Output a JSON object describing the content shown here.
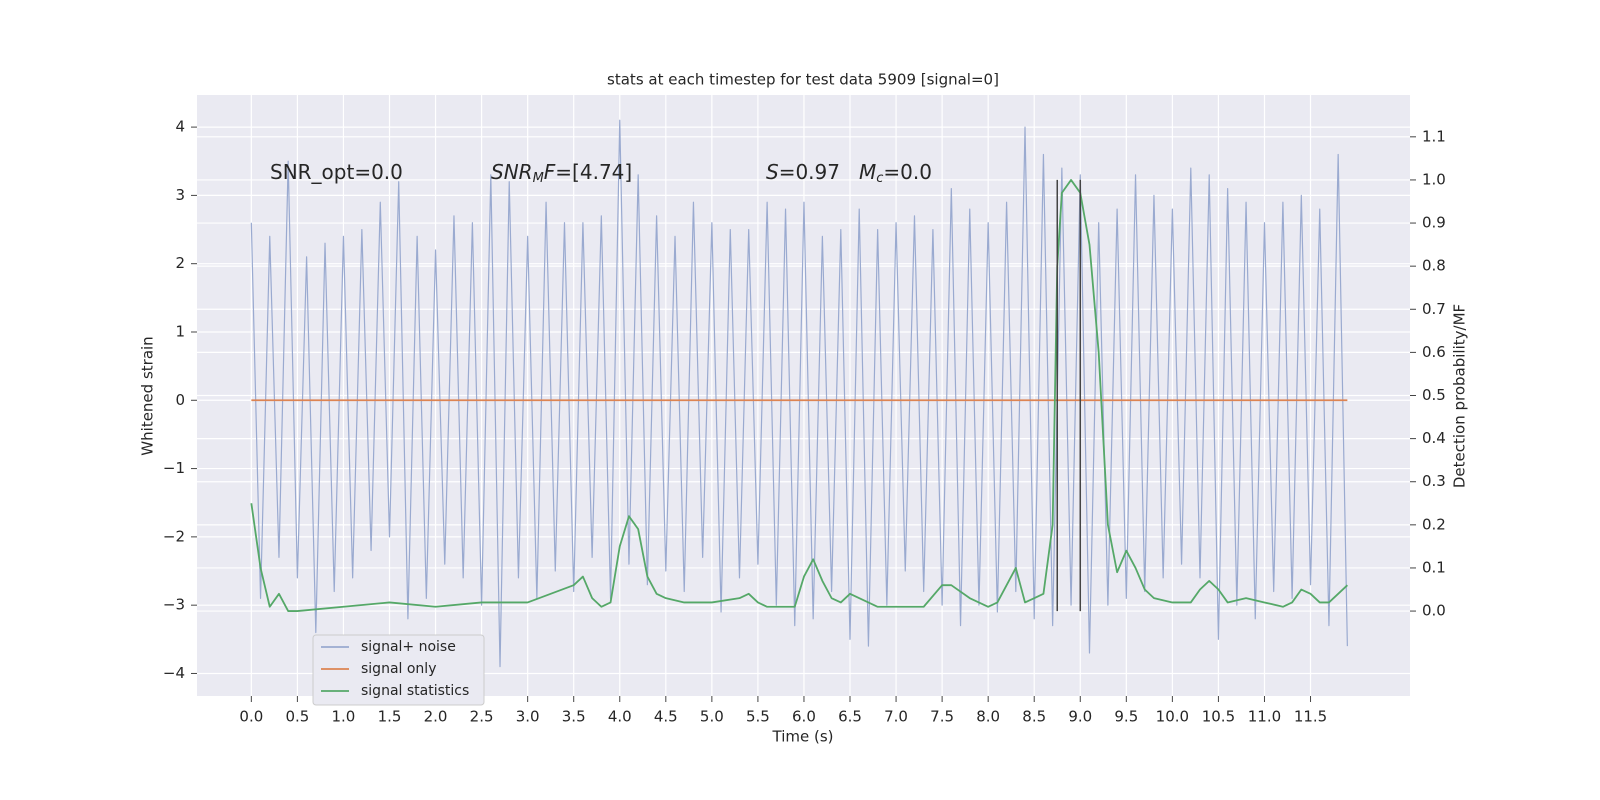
{
  "chart_data": {
    "type": "line",
    "title": "stats at each timestep for test data 5909 [signal=0]",
    "x_label": "Time (s)",
    "y_label": "Whitened strain",
    "y2_label": "Detection probability/MF",
    "xlim": [
      -0.59,
      12.58
    ],
    "ylim": [
      -4.33,
      4.47
    ],
    "y2lim": [
      -0.197,
      1.197
    ],
    "xticks": [
      {
        "value": 0,
        "label": "0.0"
      },
      {
        "value": 0.5,
        "label": "0.5"
      },
      {
        "value": 1,
        "label": "1.0"
      },
      {
        "value": 1.5,
        "label": "1.5"
      },
      {
        "value": 2,
        "label": "2.0"
      },
      {
        "value": 2.5,
        "label": "2.5"
      },
      {
        "value": 3,
        "label": "3.0"
      },
      {
        "value": 3.5,
        "label": "3.5"
      },
      {
        "value": 4,
        "label": "4.0"
      },
      {
        "value": 4.5,
        "label": "4.5"
      },
      {
        "value": 5,
        "label": "5.0"
      },
      {
        "value": 5.5,
        "label": "5.5"
      },
      {
        "value": 6,
        "label": "6.0"
      },
      {
        "value": 6.5,
        "label": "6.5"
      },
      {
        "value": 7,
        "label": "7.0"
      },
      {
        "value": 7.5,
        "label": "7.5"
      },
      {
        "value": 8,
        "label": "8.0"
      },
      {
        "value": 8.5,
        "label": "8.5"
      },
      {
        "value": 9,
        "label": "9.0"
      },
      {
        "value": 9.5,
        "label": "9.5"
      },
      {
        "value": 10,
        "label": "10.0"
      },
      {
        "value": 10.5,
        "label": "10.5"
      },
      {
        "value": 11,
        "label": "11.0"
      },
      {
        "value": 11.5,
        "label": "11.5"
      }
    ],
    "yticks": [
      {
        "value": -4,
        "label": "−4"
      },
      {
        "value": -3,
        "label": "−3"
      },
      {
        "value": -2,
        "label": "−2"
      },
      {
        "value": -1,
        "label": "−1"
      },
      0,
      1,
      2,
      3,
      4
    ],
    "y2ticks": [
      {
        "value": 0,
        "label": "0.0"
      },
      {
        "value": 0.1,
        "label": "0.1"
      },
      {
        "value": 0.2,
        "label": "0.2"
      },
      {
        "value": 0.3,
        "label": "0.3"
      },
      {
        "value": 0.4,
        "label": "0.4"
      },
      {
        "value": 0.5,
        "label": "0.5"
      },
      {
        "value": 0.6,
        "label": "0.6"
      },
      {
        "value": 0.7,
        "label": "0.7"
      },
      {
        "value": 0.8,
        "label": "0.8"
      },
      {
        "value": 0.9,
        "label": "0.9"
      },
      {
        "value": 1,
        "label": "1.0"
      },
      {
        "value": 1.1,
        "label": "1.1"
      }
    ],
    "grid": true,
    "legend": "lower left",
    "series": [
      {
        "name": "signal+ noise",
        "color": "#9aaad0",
        "x": [
          0,
          0.1,
          0.2,
          0.3,
          0.4,
          0.5,
          0.6,
          0.7,
          0.8,
          0.9,
          1,
          1.1,
          1.2,
          1.3,
          1.4,
          1.5,
          1.6,
          1.7,
          1.8,
          1.9,
          2,
          2.1,
          2.2,
          2.3,
          2.4,
          2.5,
          2.6,
          2.7,
          2.8,
          2.9,
          3,
          3.1,
          3.2,
          3.3,
          3.4,
          3.5,
          3.6,
          3.7,
          3.8,
          3.9,
          4,
          4.1,
          4.2,
          4.3,
          4.4,
          4.5,
          4.6,
          4.7,
          4.8,
          4.9,
          5,
          5.1,
          5.2,
          5.3,
          5.4,
          5.5,
          5.6,
          5.7,
          5.8,
          5.9,
          6,
          6.1,
          6.2,
          6.3,
          6.4,
          6.5,
          6.6,
          6.7,
          6.8,
          6.9,
          7,
          7.1,
          7.2,
          7.3,
          7.4,
          7.5,
          7.6,
          7.7,
          7.8,
          7.9,
          8,
          8.1,
          8.2,
          8.3,
          8.4,
          8.5,
          8.6,
          8.7,
          8.8,
          8.9,
          9,
          9.1,
          9.2,
          9.3,
          9.4,
          9.5,
          9.6,
          9.7,
          9.8,
          9.9,
          10,
          10.1,
          10.2,
          10.3,
          10.4,
          10.5,
          10.6,
          10.7,
          10.8,
          10.9,
          11,
          11.1,
          11.2,
          11.3,
          11.4,
          11.5,
          11.6,
          11.7,
          11.8,
          11.9
        ],
        "values": [
          2.6,
          -2.9,
          2.4,
          -2.3,
          3.5,
          -2.6,
          2.1,
          -3.4,
          2.3,
          -2.8,
          2.4,
          -2.6,
          2.5,
          -2.2,
          2.9,
          -2.0,
          3.2,
          -3.2,
          2.4,
          -2.9,
          2.2,
          -2.4,
          2.7,
          -2.6,
          2.6,
          -3.0,
          3.3,
          -3.9,
          3.2,
          -2.6,
          2.4,
          -2.9,
          2.9,
          -2.5,
          2.6,
          -2.8,
          2.6,
          -2.3,
          2.7,
          -2.9,
          4.1,
          -2.4,
          3.3,
          -2.7,
          2.7,
          -2.5,
          2.4,
          -2.8,
          2.9,
          -2.3,
          2.6,
          -3.1,
          2.5,
          -2.6,
          2.5,
          -2.4,
          2.9,
          -3.0,
          2.8,
          -3.3,
          2.9,
          -3.2,
          2.4,
          -2.8,
          2.5,
          -3.5,
          2.8,
          -3.6,
          2.5,
          -3.0,
          2.6,
          -2.5,
          2.7,
          -2.8,
          2.5,
          -3.0,
          3.1,
          -3.3,
          2.8,
          -3.0,
          2.6,
          -3.1,
          2.9,
          -2.8,
          4.0,
          -3.2,
          3.6,
          -3.3,
          3.4,
          -3.0,
          3.3,
          -3.7,
          2.6,
          -3.0,
          2.8,
          -2.9,
          3.3,
          -2.8,
          3.0,
          -2.6,
          2.8,
          -2.4,
          3.4,
          -2.6,
          3.3,
          -3.5,
          3.1,
          -3.0,
          2.9,
          -3.2,
          2.6,
          -2.8,
          2.9,
          -2.9,
          3.0,
          -2.7,
          2.8,
          -3.3,
          3.6,
          -3.6
        ]
      },
      {
        "name": "signal only",
        "color": "#dd8452",
        "x": [
          0,
          11.9
        ],
        "values": [
          0,
          0
        ]
      },
      {
        "name": "signal statistics",
        "color": "#55a868",
        "axis": "y2",
        "x": [
          0,
          0.1,
          0.2,
          0.3,
          0.4,
          0.5,
          1.0,
          1.5,
          2.0,
          2.5,
          3.0,
          3.5,
          3.6,
          3.7,
          3.8,
          3.9,
          4.0,
          4.1,
          4.2,
          4.3,
          4.4,
          4.5,
          4.7,
          5.0,
          5.3,
          5.4,
          5.5,
          5.6,
          5.9,
          6.0,
          6.1,
          6.2,
          6.3,
          6.4,
          6.5,
          6.8,
          7.0,
          7.3,
          7.5,
          7.6,
          7.8,
          8.0,
          8.1,
          8.2,
          8.3,
          8.4,
          8.5,
          8.6,
          8.7,
          8.75,
          8.8,
          8.9,
          9.0,
          9.1,
          9.2,
          9.3,
          9.4,
          9.5,
          9.6,
          9.7,
          9.8,
          10.0,
          10.2,
          10.3,
          10.4,
          10.5,
          10.6,
          10.8,
          11.0,
          11.2,
          11.3,
          11.4,
          11.5,
          11.6,
          11.7,
          11.8,
          11.9
        ],
        "values": [
          0.25,
          0.1,
          0.01,
          0.04,
          0.0,
          0.0,
          0.01,
          0.02,
          0.01,
          0.02,
          0.02,
          0.06,
          0.08,
          0.03,
          0.01,
          0.02,
          0.15,
          0.22,
          0.19,
          0.08,
          0.04,
          0.03,
          0.02,
          0.02,
          0.03,
          0.04,
          0.02,
          0.01,
          0.01,
          0.08,
          0.12,
          0.07,
          0.03,
          0.02,
          0.04,
          0.01,
          0.01,
          0.01,
          0.06,
          0.06,
          0.03,
          0.01,
          0.02,
          0.06,
          0.1,
          0.02,
          0.03,
          0.04,
          0.2,
          0.8,
          0.97,
          1.0,
          0.97,
          0.85,
          0.6,
          0.2,
          0.09,
          0.14,
          0.1,
          0.05,
          0.03,
          0.02,
          0.02,
          0.05,
          0.07,
          0.05,
          0.02,
          0.03,
          0.02,
          0.01,
          0.02,
          0.05,
          0.04,
          0.02,
          0.02,
          0.04,
          0.06
        ]
      }
    ],
    "vlines": {
      "x": [
        8.75,
        9.0
      ],
      "ymin": 0,
      "ymax": 1,
      "axis": "y2",
      "color": "#444444"
    },
    "annotations": [
      {
        "segments": [
          {
            "text": "SNR_opt=0.0"
          }
        ]
      },
      {
        "segments": [
          {
            "text": "SNR",
            "italic": true
          },
          {
            "text": "M",
            "italic": true,
            "sub": true
          },
          {
            "text": "F",
            "italic": true
          },
          {
            "text": "=[4.74]"
          }
        ]
      },
      {
        "segments": [
          {
            "text": "S",
            "italic": true
          },
          {
            "text": "=0.97"
          }
        ]
      },
      {
        "segments": [
          {
            "text": "M",
            "italic": true
          },
          {
            "text": "c",
            "italic": true,
            "sub": true
          },
          {
            "text": "=0.0"
          }
        ]
      }
    ]
  }
}
